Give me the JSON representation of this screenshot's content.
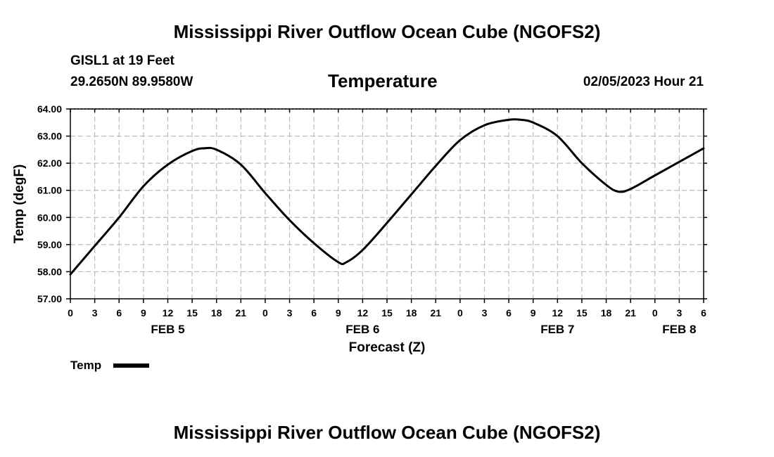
{
  "header": {
    "title": "Mississippi River Outflow Ocean Cube (NGOFS2)",
    "station": "GISL1 at 19 Feet",
    "coords": "29.2650N  89.9580W",
    "variable": "Temperature",
    "datetime": "02/05/2023 Hour 21"
  },
  "footer": {
    "title": "Mississippi River Outflow Ocean Cube (NGOFS2)"
  },
  "chart_data": {
    "type": "line",
    "title": "Temperature",
    "xlabel": "Forecast (Z)",
    "ylabel": "Temp (degF)",
    "ylim": [
      57.0,
      64.0
    ],
    "xlim": [
      0,
      78
    ],
    "grid": true,
    "y_ticks": [
      "57.00",
      "58.00",
      "59.00",
      "60.00",
      "61.00",
      "62.00",
      "63.00",
      "64.00"
    ],
    "x_tick_labels": [
      "0",
      "3",
      "6",
      "9",
      "12",
      "15",
      "18",
      "21",
      "0",
      "3",
      "6",
      "9",
      "12",
      "15",
      "18",
      "21",
      "0",
      "3",
      "6",
      "9",
      "12",
      "15",
      "18",
      "21",
      "0",
      "3",
      "6"
    ],
    "day_labels": [
      {
        "label": "FEB 5",
        "hour": 12
      },
      {
        "label": "FEB 6",
        "hour": 36
      },
      {
        "label": "FEB 7",
        "hour": 60
      },
      {
        "label": "FEB 8",
        "hour": 75
      }
    ],
    "legend": {
      "label": "Temp",
      "placement": "bottom-left"
    },
    "series": [
      {
        "name": "Temp",
        "x": [
          0,
          3,
          6,
          9,
          12,
          15,
          16.5,
          18,
          21,
          24,
          27,
          30,
          33,
          34,
          36,
          39,
          42,
          45,
          48,
          51,
          54,
          55.5,
          57,
          60,
          63,
          66,
          67.5,
          69,
          72,
          75,
          78
        ],
        "values": [
          57.9,
          58.95,
          60.0,
          61.15,
          61.95,
          62.45,
          62.55,
          62.5,
          61.95,
          60.9,
          59.9,
          59.05,
          58.35,
          58.35,
          58.8,
          59.8,
          60.85,
          61.9,
          62.85,
          63.4,
          63.6,
          63.6,
          63.5,
          63.0,
          62.0,
          61.2,
          60.95,
          61.05,
          61.55,
          62.05,
          62.55
        ]
      }
    ]
  }
}
